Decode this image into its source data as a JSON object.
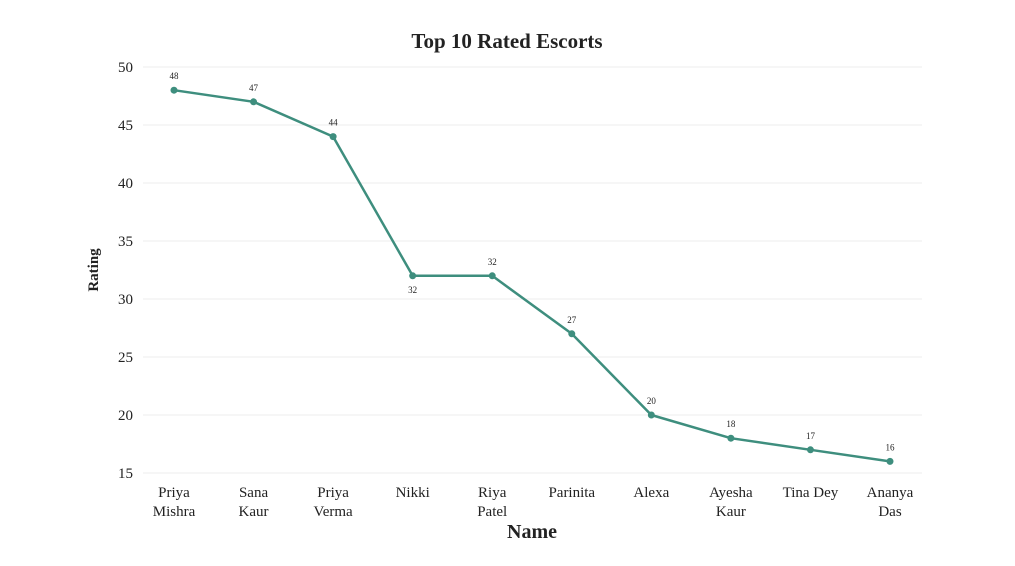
{
  "chart_data": {
    "type": "line",
    "title": "Top 10 Rated Escorts",
    "xlabel": "Name",
    "ylabel": "Rating",
    "categories": [
      [
        "Priya",
        "Mishra"
      ],
      [
        "Sana",
        "Kaur"
      ],
      [
        "Priya",
        "Verma"
      ],
      [
        "Nikki"
      ],
      [
        "Riya",
        "Patel"
      ],
      [
        "Parinita"
      ],
      [
        "Alexa"
      ],
      [
        "Ayesha",
        "Kaur"
      ],
      [
        "Tina Dey"
      ],
      [
        "Ananya",
        "Das"
      ]
    ],
    "values": [
      48,
      47,
      44,
      32,
      32,
      27,
      20,
      18,
      17,
      16
    ],
    "label_below": [
      false,
      false,
      false,
      true,
      false,
      false,
      false,
      false,
      false,
      false
    ],
    "ylim": [
      15,
      50
    ],
    "yticks": [
      15,
      20,
      25,
      30,
      35,
      40,
      45,
      50
    ],
    "grid": true,
    "line_color": "#3e8e7e"
  }
}
